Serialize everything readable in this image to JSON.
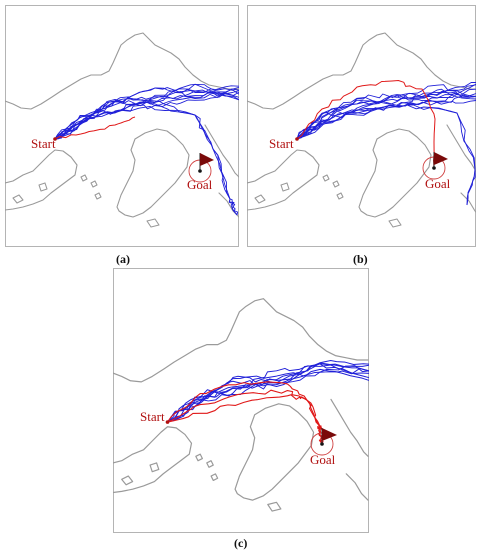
{
  "panels": [
    {
      "id": "a",
      "label": "(a)",
      "start_label": "Start",
      "goal_label": "Goal",
      "blue_paths": 12,
      "red_paths": 1
    },
    {
      "id": "b",
      "label": "(b)",
      "start_label": "Start",
      "goal_label": "Goal",
      "blue_paths": 12,
      "red_paths": 1
    },
    {
      "id": "c",
      "label": "(c)",
      "start_label": "Start",
      "goal_label": "Goal",
      "blue_paths": 8,
      "red_paths": 3
    }
  ],
  "colors": {
    "blue_path": "#2020d8",
    "red_path": "#e01818",
    "coastline": "#9a9a9a",
    "label": "#b01010",
    "flag": "#7a0a0a"
  }
}
